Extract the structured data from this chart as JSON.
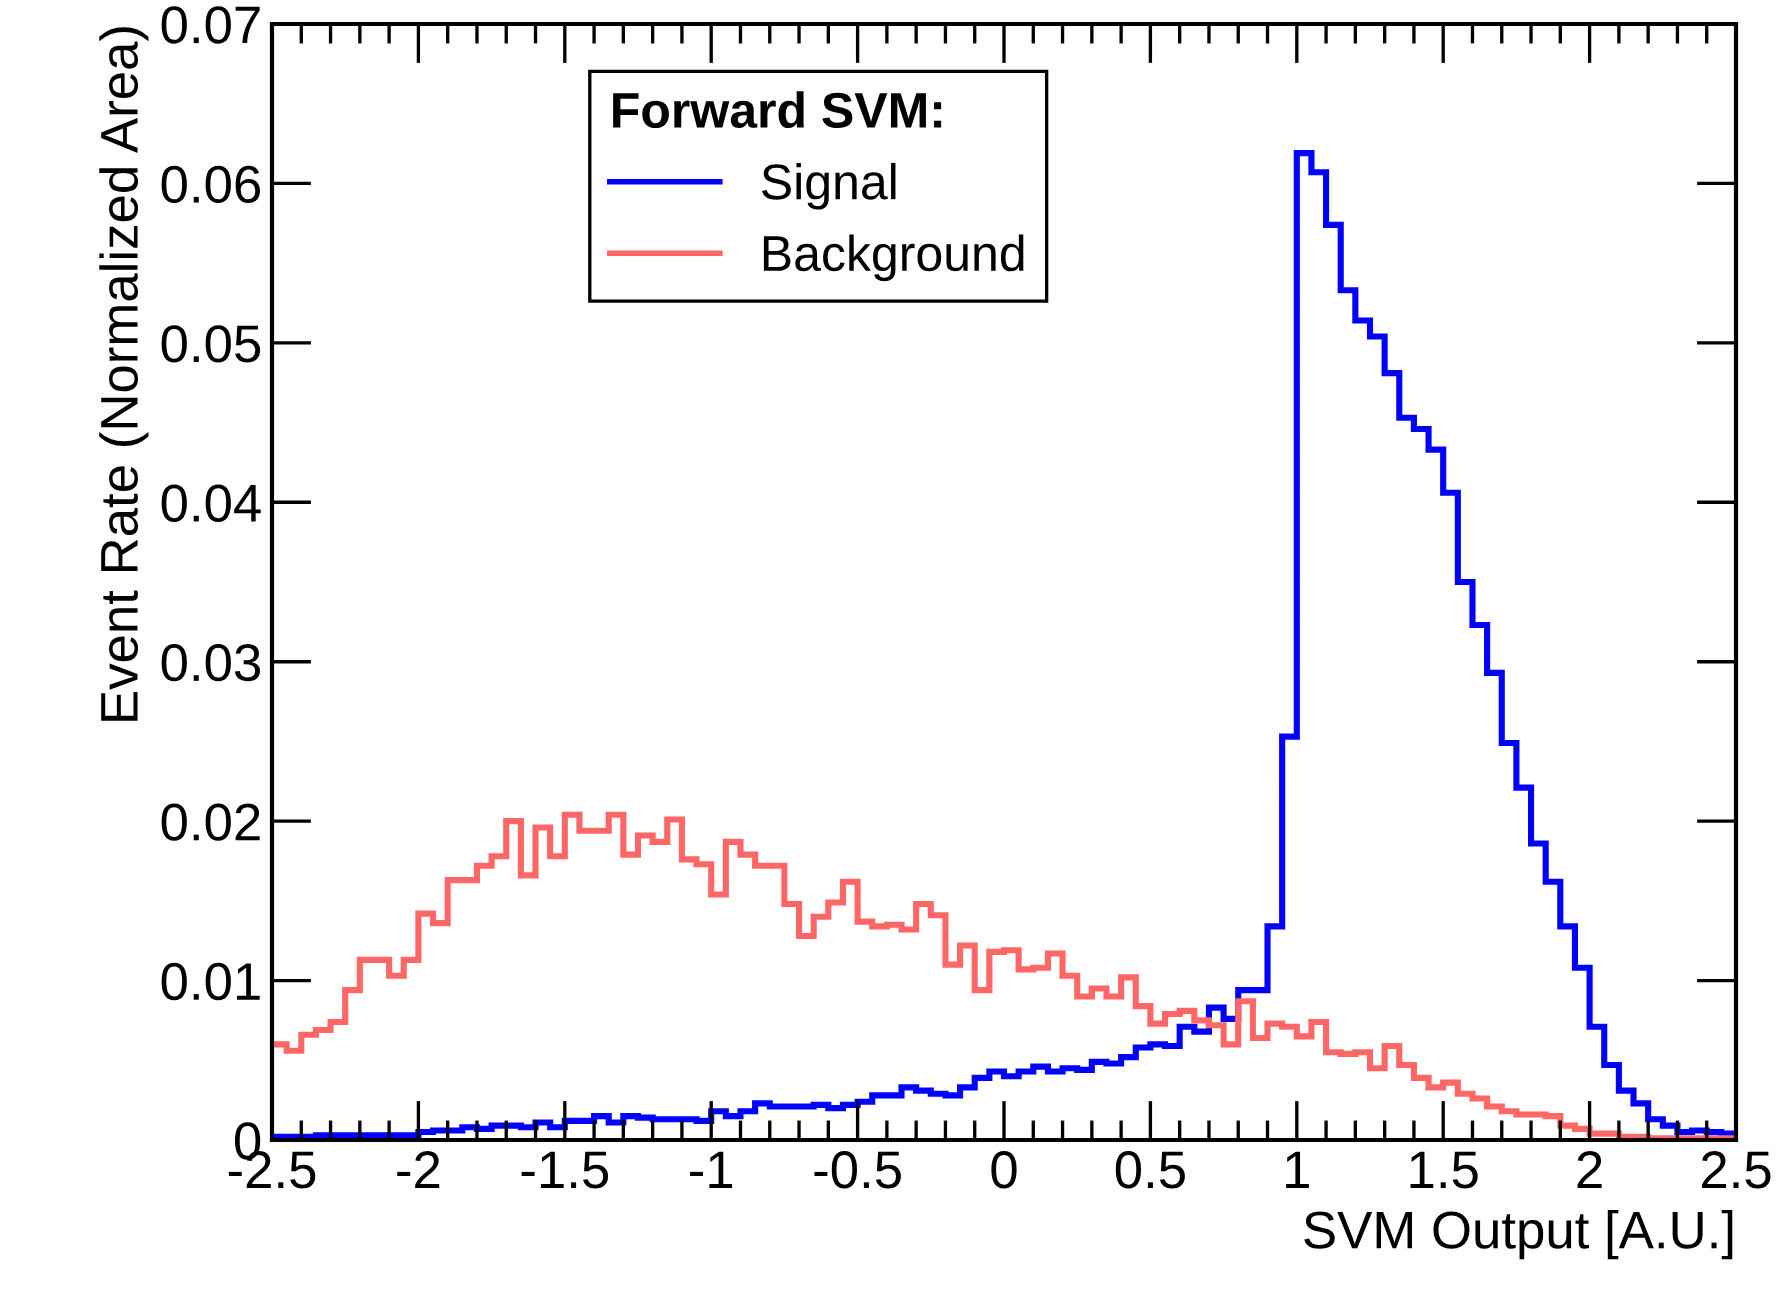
{
  "chart_data": {
    "type": "histogram",
    "xlabel": "SVM Output [A.U.]",
    "ylabel": "Event Rate (Normalized Area)",
    "legend_title": "Forward SVM:",
    "legend": "top left",
    "grid": false,
    "xlim": [
      -2.5,
      2.5
    ],
    "ylim": [
      0,
      0.07
    ],
    "xticks": [
      -2.5,
      -2,
      -1.5,
      -1,
      -0.5,
      0,
      0.5,
      1,
      1.5,
      2,
      2.5
    ],
    "yticks": [
      0,
      0.01,
      0.02,
      0.03,
      0.04,
      0.05,
      0.06,
      0.07
    ],
    "bins": [
      -2.5,
      -2.45,
      -2.4,
      -2.35,
      -2.3,
      -2.25,
      -2.2,
      -2.15,
      -2.1,
      -2.05,
      -2.0,
      -1.95,
      -1.9,
      -1.85,
      -1.8,
      -1.75,
      -1.7,
      -1.65,
      -1.6,
      -1.55,
      -1.5,
      -1.45,
      -1.4,
      -1.35,
      -1.3,
      -1.25,
      -1.2,
      -1.15,
      -1.1,
      -1.05,
      -1.0,
      -0.95,
      -0.9,
      -0.85,
      -0.8,
      -0.75,
      -0.7,
      -0.65,
      -0.6,
      -0.55,
      -0.5,
      -0.45,
      -0.4,
      -0.35,
      -0.3,
      -0.25,
      -0.2,
      -0.15,
      -0.1,
      -0.05,
      0.0,
      0.05,
      0.1,
      0.15,
      0.2,
      0.25,
      0.3,
      0.35,
      0.4,
      0.45,
      0.5,
      0.55,
      0.6,
      0.65,
      0.7,
      0.75,
      0.8,
      0.85,
      0.9,
      0.95,
      1.0,
      1.05,
      1.1,
      1.15,
      1.2,
      1.25,
      1.3,
      1.35,
      1.4,
      1.45,
      1.5,
      1.55,
      1.6,
      1.65,
      1.7,
      1.75,
      1.8,
      1.85,
      1.9,
      1.95,
      2.0,
      2.05,
      2.1,
      2.15,
      2.2,
      2.25,
      2.3,
      2.35,
      2.4,
      2.45,
      2.5
    ],
    "series": [
      {
        "name": "Signal",
        "color": "#0000ff",
        "values": [
          0.0002,
          0.0002,
          0.0002,
          0.0003,
          0.0003,
          0.0003,
          0.0003,
          0.0003,
          0.0003,
          0.0003,
          0.0005,
          0.0006,
          0.0006,
          0.0008,
          0.0007,
          0.0009,
          0.0009,
          0.0008,
          0.0011,
          0.0008,
          0.0012,
          0.0012,
          0.0015,
          0.0011,
          0.0015,
          0.0014,
          0.0013,
          0.0013,
          0.0013,
          0.0012,
          0.0018,
          0.0015,
          0.0018,
          0.0023,
          0.0021,
          0.0021,
          0.0021,
          0.0022,
          0.002,
          0.0022,
          0.0024,
          0.0028,
          0.0028,
          0.0033,
          0.0031,
          0.0029,
          0.0028,
          0.0033,
          0.0039,
          0.0043,
          0.004,
          0.0043,
          0.0046,
          0.0043,
          0.0045,
          0.0044,
          0.0049,
          0.0048,
          0.0052,
          0.0058,
          0.006,
          0.0059,
          0.0071,
          0.0068,
          0.0083,
          0.0076,
          0.0094,
          0.0094,
          0.0134,
          0.0253,
          0.0619,
          0.0607,
          0.0574,
          0.0533,
          0.0514,
          0.0504,
          0.0481,
          0.0453,
          0.0446,
          0.0433,
          0.0406,
          0.035,
          0.0323,
          0.0293,
          0.0249,
          0.0221,
          0.0186,
          0.0162,
          0.0134,
          0.0108,
          0.0071,
          0.0047,
          0.0031,
          0.0023,
          0.0013,
          0.0009,
          0.0005,
          0.0006,
          0.0005,
          0.0004
        ]
      },
      {
        "name": "Background",
        "color": "#ff6666",
        "values": [
          0.006,
          0.0056,
          0.0066,
          0.0069,
          0.0074,
          0.0094,
          0.0113,
          0.0113,
          0.0103,
          0.0113,
          0.0142,
          0.0136,
          0.0163,
          0.0163,
          0.0172,
          0.0178,
          0.02,
          0.0166,
          0.0196,
          0.0178,
          0.0204,
          0.0194,
          0.0194,
          0.0204,
          0.0179,
          0.0191,
          0.0187,
          0.0201,
          0.0176,
          0.0173,
          0.0154,
          0.0187,
          0.0179,
          0.0172,
          0.0172,
          0.0148,
          0.0128,
          0.014,
          0.0149,
          0.0162,
          0.0137,
          0.0134,
          0.0135,
          0.0132,
          0.0148,
          0.0141,
          0.011,
          0.0122,
          0.0094,
          0.0118,
          0.0119,
          0.0107,
          0.0108,
          0.0117,
          0.0103,
          0.009,
          0.0095,
          0.009,
          0.0102,
          0.0084,
          0.0073,
          0.0079,
          0.0081,
          0.0075,
          0.0072,
          0.006,
          0.0087,
          0.0064,
          0.0073,
          0.0071,
          0.0065,
          0.0074,
          0.0055,
          0.0054,
          0.0055,
          0.0045,
          0.0059,
          0.0047,
          0.0039,
          0.0033,
          0.0036,
          0.0029,
          0.0026,
          0.0021,
          0.0018,
          0.0016,
          0.0016,
          0.0015,
          0.0009,
          0.0007,
          0.0004,
          0.0004,
          0.0002,
          0.0002,
          0.0001,
          0.0001,
          0.0001,
          0.0001,
          0.0001,
          0.0001
        ]
      }
    ]
  }
}
